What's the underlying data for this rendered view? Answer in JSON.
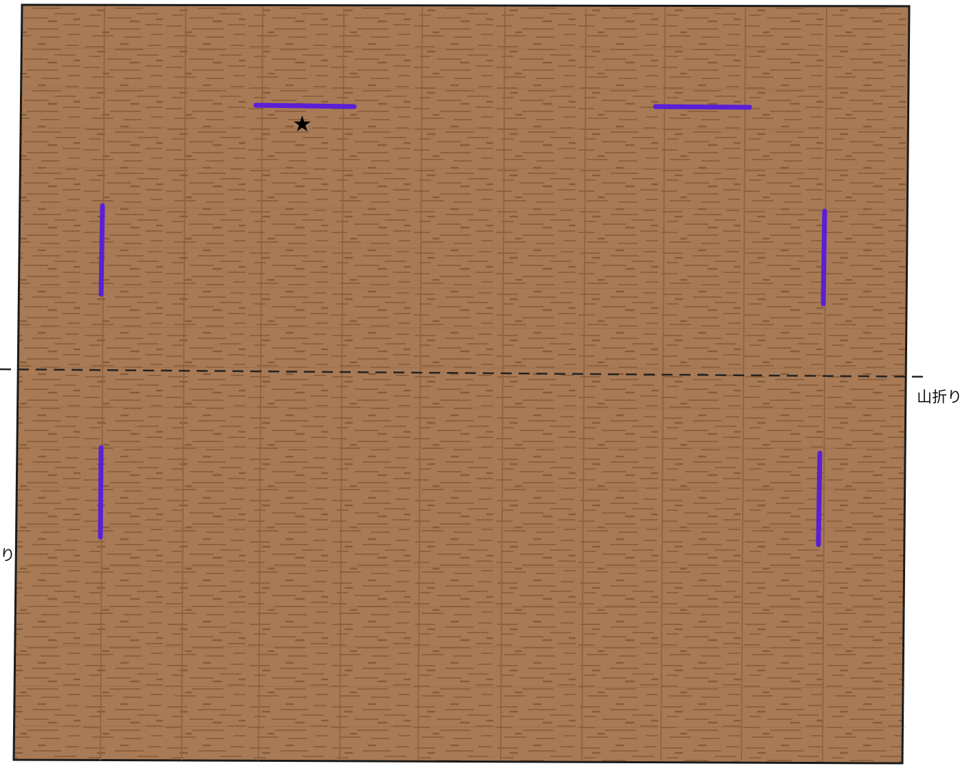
{
  "labels": {
    "mountain_fold": "山折り",
    "mountain_fold_partial": "り"
  },
  "marker": {
    "symbol": "★"
  },
  "colors": {
    "paper": "#a87a55",
    "grain": "#7a4f2a",
    "grid_line": "#8c6240",
    "cut_line": "#5a1fd6",
    "fold_line": "#222222",
    "border": "#1a1a1a"
  },
  "cut_lines": [
    {
      "name": "cut-line-top-left",
      "orientation": "horizontal"
    },
    {
      "name": "cut-line-top-right",
      "orientation": "horizontal"
    },
    {
      "name": "cut-line-upper-left",
      "orientation": "vertical"
    },
    {
      "name": "cut-line-upper-right",
      "orientation": "vertical"
    },
    {
      "name": "cut-line-lower-left",
      "orientation": "vertical"
    },
    {
      "name": "cut-line-lower-right",
      "orientation": "vertical"
    }
  ]
}
